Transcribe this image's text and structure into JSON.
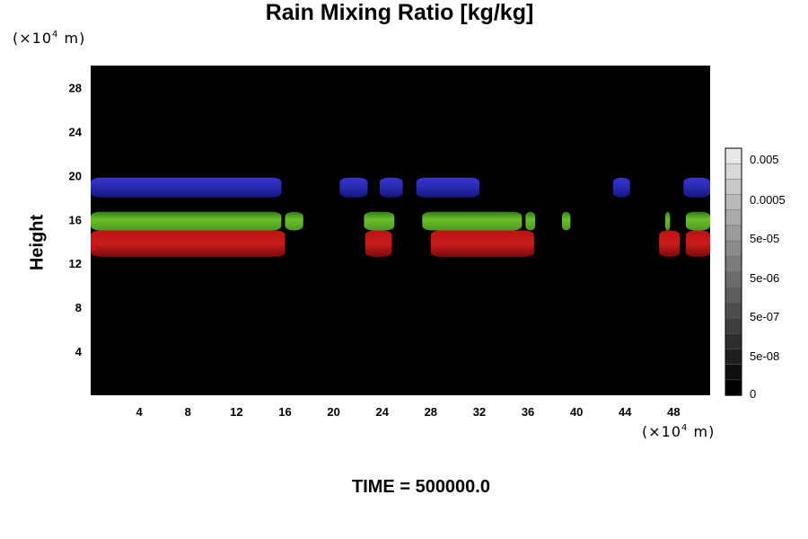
{
  "chart_data": {
    "type": "heatmap",
    "title": "Rain Mixing Ratio [kg/kg]",
    "ylabel": "Height",
    "y_unit": {
      "prefix": "(×10",
      "exponent": "4",
      "suffix": " m)"
    },
    "x_unit": {
      "prefix": "(×10",
      "exponent": "4",
      "suffix": " m)"
    },
    "x_ticks": [
      "4",
      "8",
      "12",
      "16",
      "20",
      "24",
      "28",
      "32",
      "36",
      "40",
      "44",
      "48"
    ],
    "y_ticks": [
      "4",
      "8",
      "12",
      "16",
      "20",
      "24",
      "28"
    ],
    "xlim": [
      0,
      51
    ],
    "ylim": [
      0,
      30
    ],
    "background_color": "#000000",
    "colorbar": {
      "labels": [
        "0.005",
        "0.0005",
        "5e-05",
        "5e-06",
        "5e-07",
        "5e-08",
        "0"
      ]
    },
    "features": [
      {
        "name": "blue band",
        "color": "#2a2ac8",
        "x": [
          0,
          51
        ],
        "y": [
          18,
          19.8
        ]
      },
      {
        "name": "green band",
        "color": "#5fa82a",
        "x": [
          0,
          51
        ],
        "y": [
          15,
          16.5
        ]
      },
      {
        "name": "red band",
        "color": "#c41818",
        "x": [
          0,
          51
        ],
        "y": [
          12.5,
          15
        ]
      }
    ]
  },
  "footer": {
    "time": "TIME = 500000.0"
  }
}
